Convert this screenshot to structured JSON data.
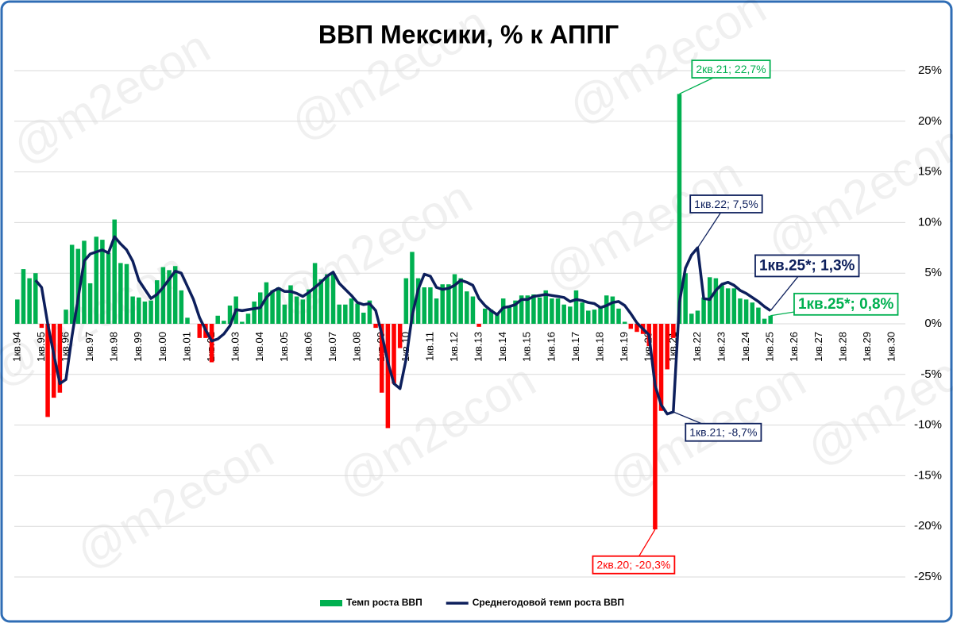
{
  "chart_data": {
    "type": "bar-line",
    "title": "ВВП Мексики, % к АППГ",
    "watermark": "@m2econ",
    "categories": [
      "1кв.94",
      null,
      null,
      null,
      "1кв.95",
      null,
      null,
      null,
      "1кв.96",
      null,
      null,
      null,
      "1кв.97",
      null,
      null,
      null,
      "1кв.98",
      null,
      null,
      null,
      "1кв.99",
      null,
      null,
      null,
      "1кв.00",
      null,
      null,
      null,
      "1кв.01",
      null,
      null,
      null,
      "1кв.02",
      null,
      null,
      null,
      "1кв.03",
      null,
      null,
      null,
      "1кв.04",
      null,
      null,
      null,
      "1кв.05",
      null,
      null,
      null,
      "1кв.06",
      null,
      null,
      null,
      "1кв.07",
      null,
      null,
      null,
      "1кв.08",
      null,
      null,
      null,
      "1кв.09",
      null,
      null,
      null,
      "1кв.10",
      null,
      null,
      null,
      "1кв.11",
      null,
      null,
      null,
      "1кв.12",
      null,
      null,
      null,
      "1кв.13",
      null,
      null,
      null,
      "1кв.14",
      null,
      null,
      null,
      "1кв.15",
      null,
      null,
      null,
      "1кв.16",
      null,
      null,
      null,
      "1кв.17",
      null,
      null,
      null,
      "1кв.18",
      null,
      null,
      null,
      "1кв.19",
      null,
      null,
      null,
      "1кв.20",
      null,
      null,
      null,
      "1кв.21",
      null,
      null,
      null,
      "1кв.22",
      null,
      null,
      null,
      "1кв.23",
      null,
      null,
      null,
      "1кв.24",
      null,
      null,
      null,
      "1кв.25",
      null,
      null,
      null,
      "1кв.26",
      null,
      null,
      null,
      "1кв.27",
      null,
      null,
      null,
      "1кв.28",
      null,
      null,
      null,
      "1кв.29",
      null,
      null,
      null,
      "1кв.30"
    ],
    "series": [
      {
        "name": "Темп роста ВВП",
        "type": "bar",
        "color": "#00b050",
        "negative_color": "#ff0000",
        "values": [
          2.4,
          5.4,
          4.5,
          5.0,
          -0.4,
          -9.2,
          -7.3,
          -6.8,
          1.4,
          7.8,
          7.4,
          8.2,
          4.0,
          8.6,
          8.3,
          7.0,
          10.3,
          6.0,
          5.9,
          2.7,
          2.6,
          2.2,
          2.3,
          4.3,
          5.6,
          5.3,
          5.7,
          3.3,
          0.6,
          0.0,
          -1.4,
          -1.4,
          -3.8,
          0.8,
          0.3,
          1.8,
          2.7,
          0.2,
          1.0,
          2.2,
          3.1,
          4.1,
          3.3,
          3.6,
          1.9,
          3.8,
          2.7,
          2.4,
          3.4,
          6.0,
          4.4,
          4.9,
          4.9,
          1.9,
          1.9,
          2.5,
          2.0,
          1.1,
          2.3,
          -0.4,
          -6.8,
          -10.3,
          -5.9,
          -2.4,
          4.5,
          7.1,
          4.5,
          3.6,
          3.6,
          2.5,
          3.9,
          3.9,
          4.9,
          4.5,
          3.2,
          2.7,
          -0.3,
          1.5,
          1.4,
          1.0,
          2.5,
          1.8,
          2.3,
          2.8,
          2.8,
          2.9,
          2.6,
          3.3,
          2.5,
          2.5,
          1.9,
          1.7,
          3.3,
          2.1,
          1.3,
          1.4,
          1.6,
          2.8,
          2.7,
          1.5,
          0.2,
          -0.5,
          -0.8,
          -1.0,
          -2.2,
          -20.3,
          -8.6,
          -4.5,
          -1.4,
          22.7,
          5.0,
          1.0,
          1.3,
          2.6,
          4.6,
          4.5,
          3.8,
          3.5,
          3.5,
          2.5,
          2.4,
          2.1,
          1.6,
          0.5,
          0.8,
          null,
          null,
          null,
          null,
          null,
          null,
          null,
          null,
          null,
          null,
          null,
          null,
          null,
          null,
          null,
          null,
          null,
          null,
          null,
          null
        ],
        "value_labels": [
          null,
          null,
          null,
          null,
          null,
          null,
          null,
          null,
          null,
          null,
          null,
          null,
          null,
          null,
          null,
          null,
          null,
          null,
          null,
          null,
          null,
          null,
          null,
          null,
          null,
          null,
          null,
          null,
          null,
          null,
          null,
          null,
          null,
          null,
          null,
          null,
          null,
          null,
          null,
          null,
          null,
          null,
          null,
          null,
          null,
          null,
          null,
          null,
          null,
          null,
          null,
          null,
          null,
          null,
          null,
          null,
          null,
          null,
          null,
          null,
          null,
          null,
          null,
          null,
          null,
          null,
          null,
          null,
          null,
          null,
          null,
          null,
          null,
          null,
          null,
          null,
          null,
          null,
          null,
          null,
          null,
          null,
          null,
          null,
          null,
          null,
          null,
          null,
          null,
          null,
          null,
          null,
          null,
          null,
          null,
          null,
          null,
          null,
          null,
          null,
          null,
          null,
          null,
          null,
          null,
          "2кв.20; -20,3%",
          null,
          null,
          null,
          "2кв.21; 22,7%",
          null,
          null,
          null,
          null,
          null,
          null,
          null,
          null,
          null,
          null,
          null,
          null,
          null,
          null,
          "1кв.25*; 0,8%",
          null,
          null,
          null,
          null,
          null,
          null,
          null,
          null,
          null,
          null,
          null,
          null,
          null,
          null,
          null,
          null,
          null,
          null,
          null,
          null
        ]
      },
      {
        "name": "Среднегодовой темп роста ВВП",
        "type": "line",
        "color": "#0d1f5c",
        "values": [
          null,
          null,
          null,
          4.3,
          3.6,
          0.0,
          -3.0,
          -5.9,
          -5.5,
          -1.2,
          2.5,
          6.2,
          6.9,
          7.1,
          7.3,
          7.0,
          8.6,
          7.9,
          7.3,
          6.2,
          4.3,
          3.4,
          2.5,
          2.9,
          3.6,
          4.4,
          5.2,
          5.0,
          3.7,
          2.4,
          0.6,
          -0.6,
          -1.7,
          -1.5,
          -1.0,
          -0.2,
          1.4,
          1.3,
          1.4,
          1.5,
          1.6,
          2.6,
          3.2,
          3.5,
          3.2,
          3.2,
          3.0,
          2.7,
          3.1,
          3.6,
          4.1,
          4.7,
          5.1,
          4.0,
          3.4,
          2.8,
          2.1,
          1.9,
          2.0,
          1.3,
          -1.0,
          -3.8,
          -5.9,
          -6.4,
          -3.5,
          0.8,
          3.4,
          4.9,
          4.7,
          3.6,
          3.4,
          3.5,
          3.8,
          4.3,
          4.1,
          3.8,
          2.5,
          1.8,
          1.3,
          0.9,
          1.6,
          1.7,
          1.9,
          2.4,
          2.4,
          2.7,
          2.8,
          2.9,
          2.8,
          2.7,
          2.6,
          2.2,
          2.4,
          2.3,
          2.1,
          2.0,
          1.6,
          1.8,
          2.1,
          2.2,
          1.8,
          1.0,
          0.1,
          -0.5,
          -1.1,
          -6.1,
          -8.0,
          -8.9,
          -8.7,
          2.1,
          5.5,
          6.8,
          7.5,
          2.5,
          2.4,
          3.3,
          3.9,
          4.1,
          3.8,
          3.3,
          3.0,
          2.6,
          2.2,
          1.7,
          1.3,
          null,
          null,
          null,
          null,
          null,
          null,
          null,
          null,
          null,
          null,
          null,
          null,
          null,
          null,
          null,
          null,
          null,
          null,
          null,
          null
        ],
        "value_labels": [
          null,
          null,
          null,
          null,
          null,
          null,
          null,
          null,
          null,
          null,
          null,
          null,
          null,
          null,
          null,
          null,
          null,
          null,
          null,
          null,
          null,
          null,
          null,
          null,
          null,
          null,
          null,
          null,
          null,
          null,
          null,
          null,
          null,
          null,
          null,
          null,
          null,
          null,
          null,
          null,
          null,
          null,
          null,
          null,
          null,
          null,
          null,
          null,
          null,
          null,
          null,
          null,
          null,
          null,
          null,
          null,
          null,
          null,
          null,
          null,
          null,
          null,
          null,
          null,
          null,
          null,
          null,
          null,
          null,
          null,
          null,
          null,
          null,
          null,
          null,
          null,
          null,
          null,
          null,
          null,
          null,
          null,
          null,
          null,
          null,
          null,
          null,
          null,
          null,
          null,
          null,
          null,
          null,
          null,
          null,
          null,
          null,
          null,
          null,
          null,
          null,
          null,
          null,
          null,
          null,
          null,
          null,
          null,
          "1кв.21; -8,7%",
          null,
          null,
          null,
          "1кв.22; 7,5%",
          null,
          null,
          null,
          null,
          null,
          null,
          null,
          null,
          null,
          null,
          null,
          "1кв.25*; 1,3%",
          null,
          null,
          null,
          null,
          null,
          null,
          null,
          null,
          null,
          null,
          null,
          null,
          null,
          null,
          null,
          null,
          null,
          null,
          null,
          null
        ]
      }
    ],
    "ylim": [
      -25,
      25
    ],
    "yticks": [
      {
        "value": -25,
        "label": "-25%"
      },
      {
        "value": -20,
        "label": "-20%"
      },
      {
        "value": -15,
        "label": "-15%"
      },
      {
        "value": -10,
        "label": "-10%"
      },
      {
        "value": -5,
        "label": "-5%"
      },
      {
        "value": 0,
        "label": "0%"
      },
      {
        "value": 5,
        "label": "5%"
      },
      {
        "value": 10,
        "label": "10%"
      },
      {
        "value": 15,
        "label": "15%"
      },
      {
        "value": 20,
        "label": "20%"
      },
      {
        "value": 25,
        "label": "25%"
      }
    ],
    "grid": true,
    "legend": "bottom"
  }
}
